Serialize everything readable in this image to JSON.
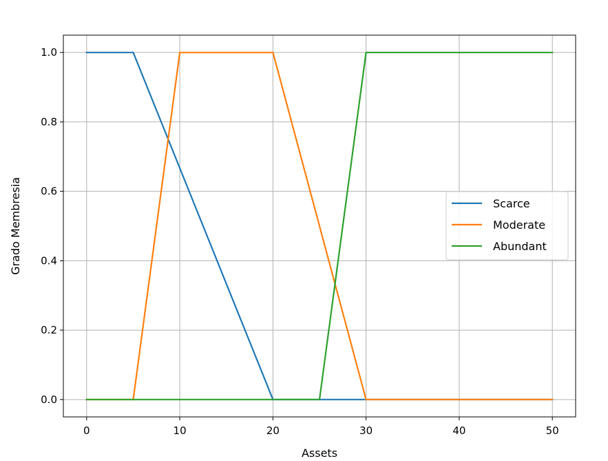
{
  "chart_data": {
    "type": "line",
    "title": "",
    "xlabel": "Assets",
    "ylabel": "Grado Membresia",
    "xlim": [
      -2.5,
      52.5
    ],
    "ylim": [
      -0.05,
      1.05
    ],
    "grid": true,
    "legend_position": "center-right",
    "x_ticks": [
      0,
      10,
      20,
      30,
      40,
      50
    ],
    "y_ticks": [
      0.0,
      0.2,
      0.4,
      0.6,
      0.8,
      1.0
    ],
    "x_tick_labels": [
      "0",
      "10",
      "20",
      "30",
      "40",
      "50"
    ],
    "y_tick_labels": [
      "0.0",
      "0.2",
      "0.4",
      "0.6",
      "0.8",
      "1.0"
    ],
    "series": [
      {
        "name": "Scarce",
        "color": "#1f77b4",
        "x": [
          0,
          5,
          20,
          50
        ],
        "y": [
          1,
          1,
          0,
          0
        ]
      },
      {
        "name": "Moderate",
        "color": "#ff7f0e",
        "x": [
          0,
          5,
          10,
          20,
          30,
          50
        ],
        "y": [
          0,
          0,
          1,
          1,
          0,
          0
        ]
      },
      {
        "name": "Abundant",
        "color": "#2ca02c",
        "x": [
          0,
          25,
          30,
          50
        ],
        "y": [
          0,
          0,
          1,
          1
        ]
      }
    ]
  }
}
